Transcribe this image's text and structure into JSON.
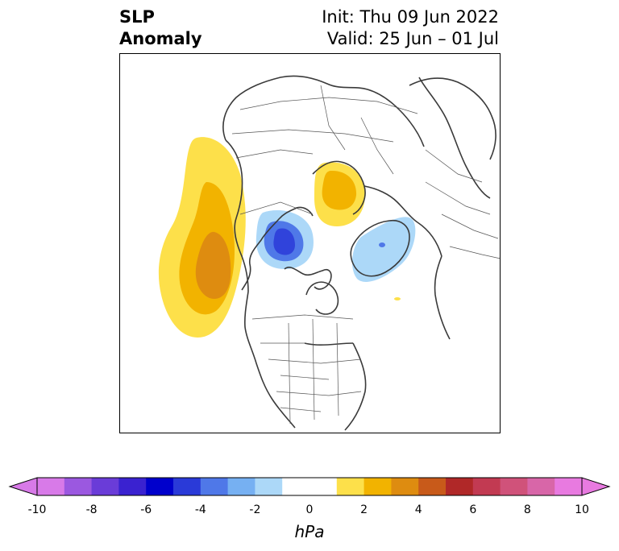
{
  "header": {
    "title_line1": "SLP",
    "title_line2": "Anomaly",
    "init_text": "Init: Thu 09 Jun 2022",
    "valid_text": "Valid: 25 Jun – 01 Jul"
  },
  "colorbar": {
    "unit_label": "hPa",
    "ticks": [
      "-10",
      "-8",
      "-6",
      "-4",
      "-2",
      "0",
      "2",
      "4",
      "6",
      "8",
      "10"
    ],
    "range": [
      -10,
      10
    ],
    "bin_colors": [
      "#d87ae8",
      "#9b58e0",
      "#6a3cd8",
      "#3a22d0",
      "#0000cc",
      "#2a3ad8",
      "#4f78e8",
      "#76b0f2",
      "#acd8f8",
      "#ffffff",
      "#ffffff",
      "#fde04a",
      "#f2b300",
      "#de8c10",
      "#c85a1a",
      "#b02828",
      "#c23a52",
      "#d0527a",
      "#d866a8",
      "#e87ae0"
    ],
    "extend_low_color": "#d87ae8",
    "extend_high_color": "#e87ae0"
  },
  "map": {
    "projection": "north-polar-stereographic",
    "coastline_color": "#3a3a3a",
    "border_color": "#444444",
    "anomaly_regions": [
      {
        "name": "north-pacific-high",
        "sign": "positive",
        "peak_hpa": 5
      },
      {
        "name": "north-siberia-high",
        "sign": "positive",
        "peak_hpa": 2
      },
      {
        "name": "bering-alaska-low",
        "sign": "negative",
        "peak_hpa": -4
      },
      {
        "name": "greenland-low",
        "sign": "negative",
        "peak_hpa": -2
      }
    ]
  }
}
